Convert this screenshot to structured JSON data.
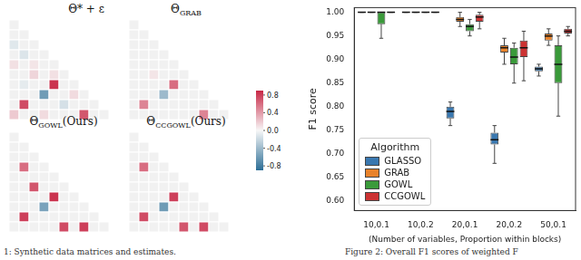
{
  "heatmaps": [
    {
      "label": "Θ* + ε",
      "size": 10,
      "cells": [
        [
          2,
          0,
          -0.1
        ],
        [
          3,
          1,
          -0.12
        ],
        [
          4,
          0,
          0.1
        ],
        [
          4,
          2,
          0.08
        ],
        [
          5,
          2,
          0.15
        ],
        [
          5,
          4,
          0.1
        ],
        [
          6,
          1,
          -0.08
        ],
        [
          6,
          4,
          0.85
        ],
        [
          7,
          3,
          -0.6
        ],
        [
          7,
          6,
          0.12
        ],
        [
          8,
          1,
          0.75
        ],
        [
          8,
          5,
          -0.15
        ],
        [
          9,
          0,
          0.2
        ],
        [
          9,
          3,
          0.12
        ],
        [
          9,
          7,
          0.7
        ]
      ]
    },
    {
      "label": "Θ",
      "subscript": "GRAB",
      "size": 10,
      "cells": [
        [
          5,
          2,
          0.08
        ],
        [
          6,
          4,
          0.6
        ],
        [
          7,
          3,
          -0.4
        ],
        [
          8,
          1,
          0.5
        ],
        [
          9,
          7,
          0.5
        ]
      ]
    },
    {
      "label": "Θ",
      "subscript": "GOWL",
      "suffix": "(Ours)",
      "size": 10,
      "cells": [
        [
          3,
          1,
          0.6
        ],
        [
          5,
          2,
          0.7
        ],
        [
          6,
          4,
          0.85
        ],
        [
          7,
          3,
          -0.55
        ],
        [
          8,
          1,
          0.8
        ],
        [
          9,
          5,
          0.75
        ],
        [
          9,
          7,
          0.8
        ]
      ]
    },
    {
      "label": "Θ",
      "subscript": "CCGOWL",
      "suffix": "(Ours)",
      "size": 10,
      "cells": [
        [
          3,
          1,
          0.6
        ],
        [
          6,
          4,
          0.8
        ],
        [
          7,
          3,
          -0.6
        ],
        [
          8,
          1,
          0.75
        ],
        [
          9,
          5,
          0.7
        ],
        [
          9,
          7,
          0.75
        ]
      ]
    }
  ],
  "colorbar": {
    "range": [
      -0.9,
      0.9
    ],
    "ticks": [
      0.8,
      0.4,
      {
        "value": 0,
        "label": "0.0"
      },
      -0.4,
      -0.8
    ]
  },
  "captions": [
    "1: Synthetic data matrices and estimates.",
    "Figure 2: Overall F1 scores of weighted F"
  ],
  "chart_data": {
    "type": "boxplot",
    "categories": [
      "10,0.1",
      "10,0.2",
      "20,0.1",
      "20,0.2",
      "50,0.1"
    ],
    "x_label": "(Number of variables, Proportion within blocks)",
    "y_label": "F1 score",
    "ylim": [
      0.58,
      1.01
    ],
    "yticks": [
      {
        "value": 0.6,
        "label": "0.60"
      },
      {
        "value": 0.65,
        "label": "0.65"
      },
      {
        "value": 0.7,
        "label": "0.70"
      },
      {
        "value": 0.75,
        "label": "0.75"
      },
      {
        "value": 0.8,
        "label": "0.80"
      },
      {
        "value": 0.85,
        "label": "0.85"
      },
      {
        "value": 0.9,
        "label": "0.90"
      },
      {
        "value": 0.95,
        "label": "0.95"
      },
      {
        "value": 1,
        "label": "1.00"
      }
    ],
    "grid": false,
    "legend": "lower left",
    "legend_title": "Algorithm",
    "series": [
      {
        "name": "GLASSO",
        "color": "#3a78b0",
        "min": [
          1,
          1,
          0.76,
          0.68,
          0.865
        ],
        "q1": [
          1,
          1,
          0.775,
          0.72,
          0.875
        ],
        "median": [
          1,
          1,
          0.79,
          0.73,
          0.88
        ],
        "q3": [
          1,
          1,
          0.8,
          0.745,
          0.885
        ],
        "max": [
          1,
          1,
          0.81,
          0.76,
          0.89
        ]
      },
      {
        "name": "GRAB",
        "color": "#e8822a",
        "min": [
          1,
          1,
          0.97,
          0.89,
          0.93
        ],
        "q1": [
          1,
          1,
          0.98,
          0.915,
          0.94
        ],
        "median": [
          1,
          1,
          0.985,
          0.925,
          0.95
        ],
        "q3": [
          1,
          1,
          0.99,
          0.93,
          0.955
        ],
        "max": [
          1,
          1,
          1,
          0.945,
          0.965
        ]
      },
      {
        "name": "GOWL",
        "color": "#3a9a3a",
        "min": [
          0.945,
          1,
          0.95,
          0.85,
          0.78
        ],
        "q1": [
          0.975,
          1,
          0.96,
          0.89,
          0.85
        ],
        "median": [
          1,
          1,
          0.97,
          0.905,
          0.89
        ],
        "q3": [
          1,
          1,
          0.975,
          0.925,
          0.93
        ],
        "max": [
          1,
          1,
          0.985,
          0.935,
          0.95
        ]
      },
      {
        "name": "CCGOWL",
        "color": "#cc3333",
        "min": [
          1,
          1,
          0.965,
          0.855,
          0.95
        ],
        "q1": [
          1,
          1,
          0.98,
          0.905,
          0.955
        ],
        "median": [
          1,
          1,
          0.99,
          0.925,
          0.96
        ],
        "q3": [
          1,
          1,
          0.995,
          0.94,
          0.965
        ],
        "max": [
          1,
          1,
          1,
          0.96,
          0.97
        ]
      }
    ]
  }
}
